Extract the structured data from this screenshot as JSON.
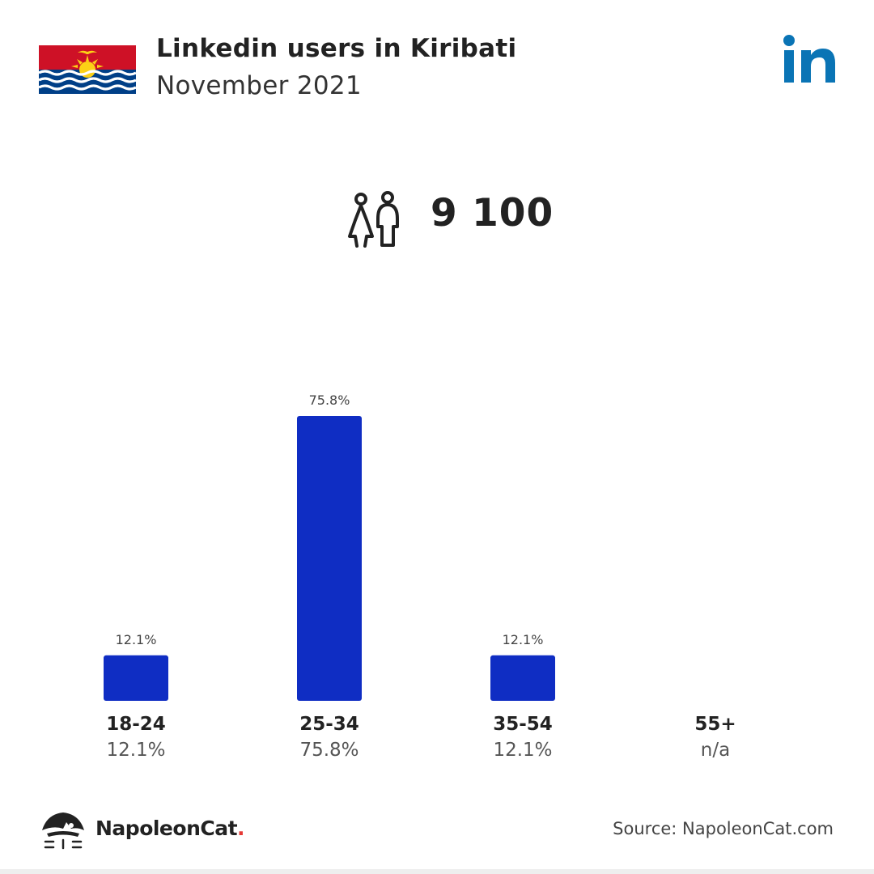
{
  "header": {
    "title": "Linkedin users in Kiribati",
    "subtitle": "November 2021"
  },
  "total": {
    "value": "9 100",
    "icon": "people-icon"
  },
  "colors": {
    "bar": "#0f2dc3",
    "linkedin": "#0a74b5",
    "flag_red": "#ce1126",
    "flag_blue": "#003f87",
    "flag_gold": "#fcd116"
  },
  "chart_data": {
    "type": "bar",
    "title": "",
    "xlabel": "",
    "ylabel": "",
    "ylim": [
      0,
      75.8
    ],
    "categories": [
      "18-24",
      "25-34",
      "35-54",
      "55+"
    ],
    "values": [
      12.1,
      75.8,
      12.1,
      null
    ],
    "data_labels": [
      "12.1%",
      "75.8%",
      "12.1%",
      ""
    ],
    "category_values": [
      "12.1%",
      "75.8%",
      "12.1%",
      "n/a"
    ]
  },
  "footer": {
    "brand": "NapoleonCat",
    "brand_dot": ".",
    "source": "Source: NapoleonCat.com"
  }
}
